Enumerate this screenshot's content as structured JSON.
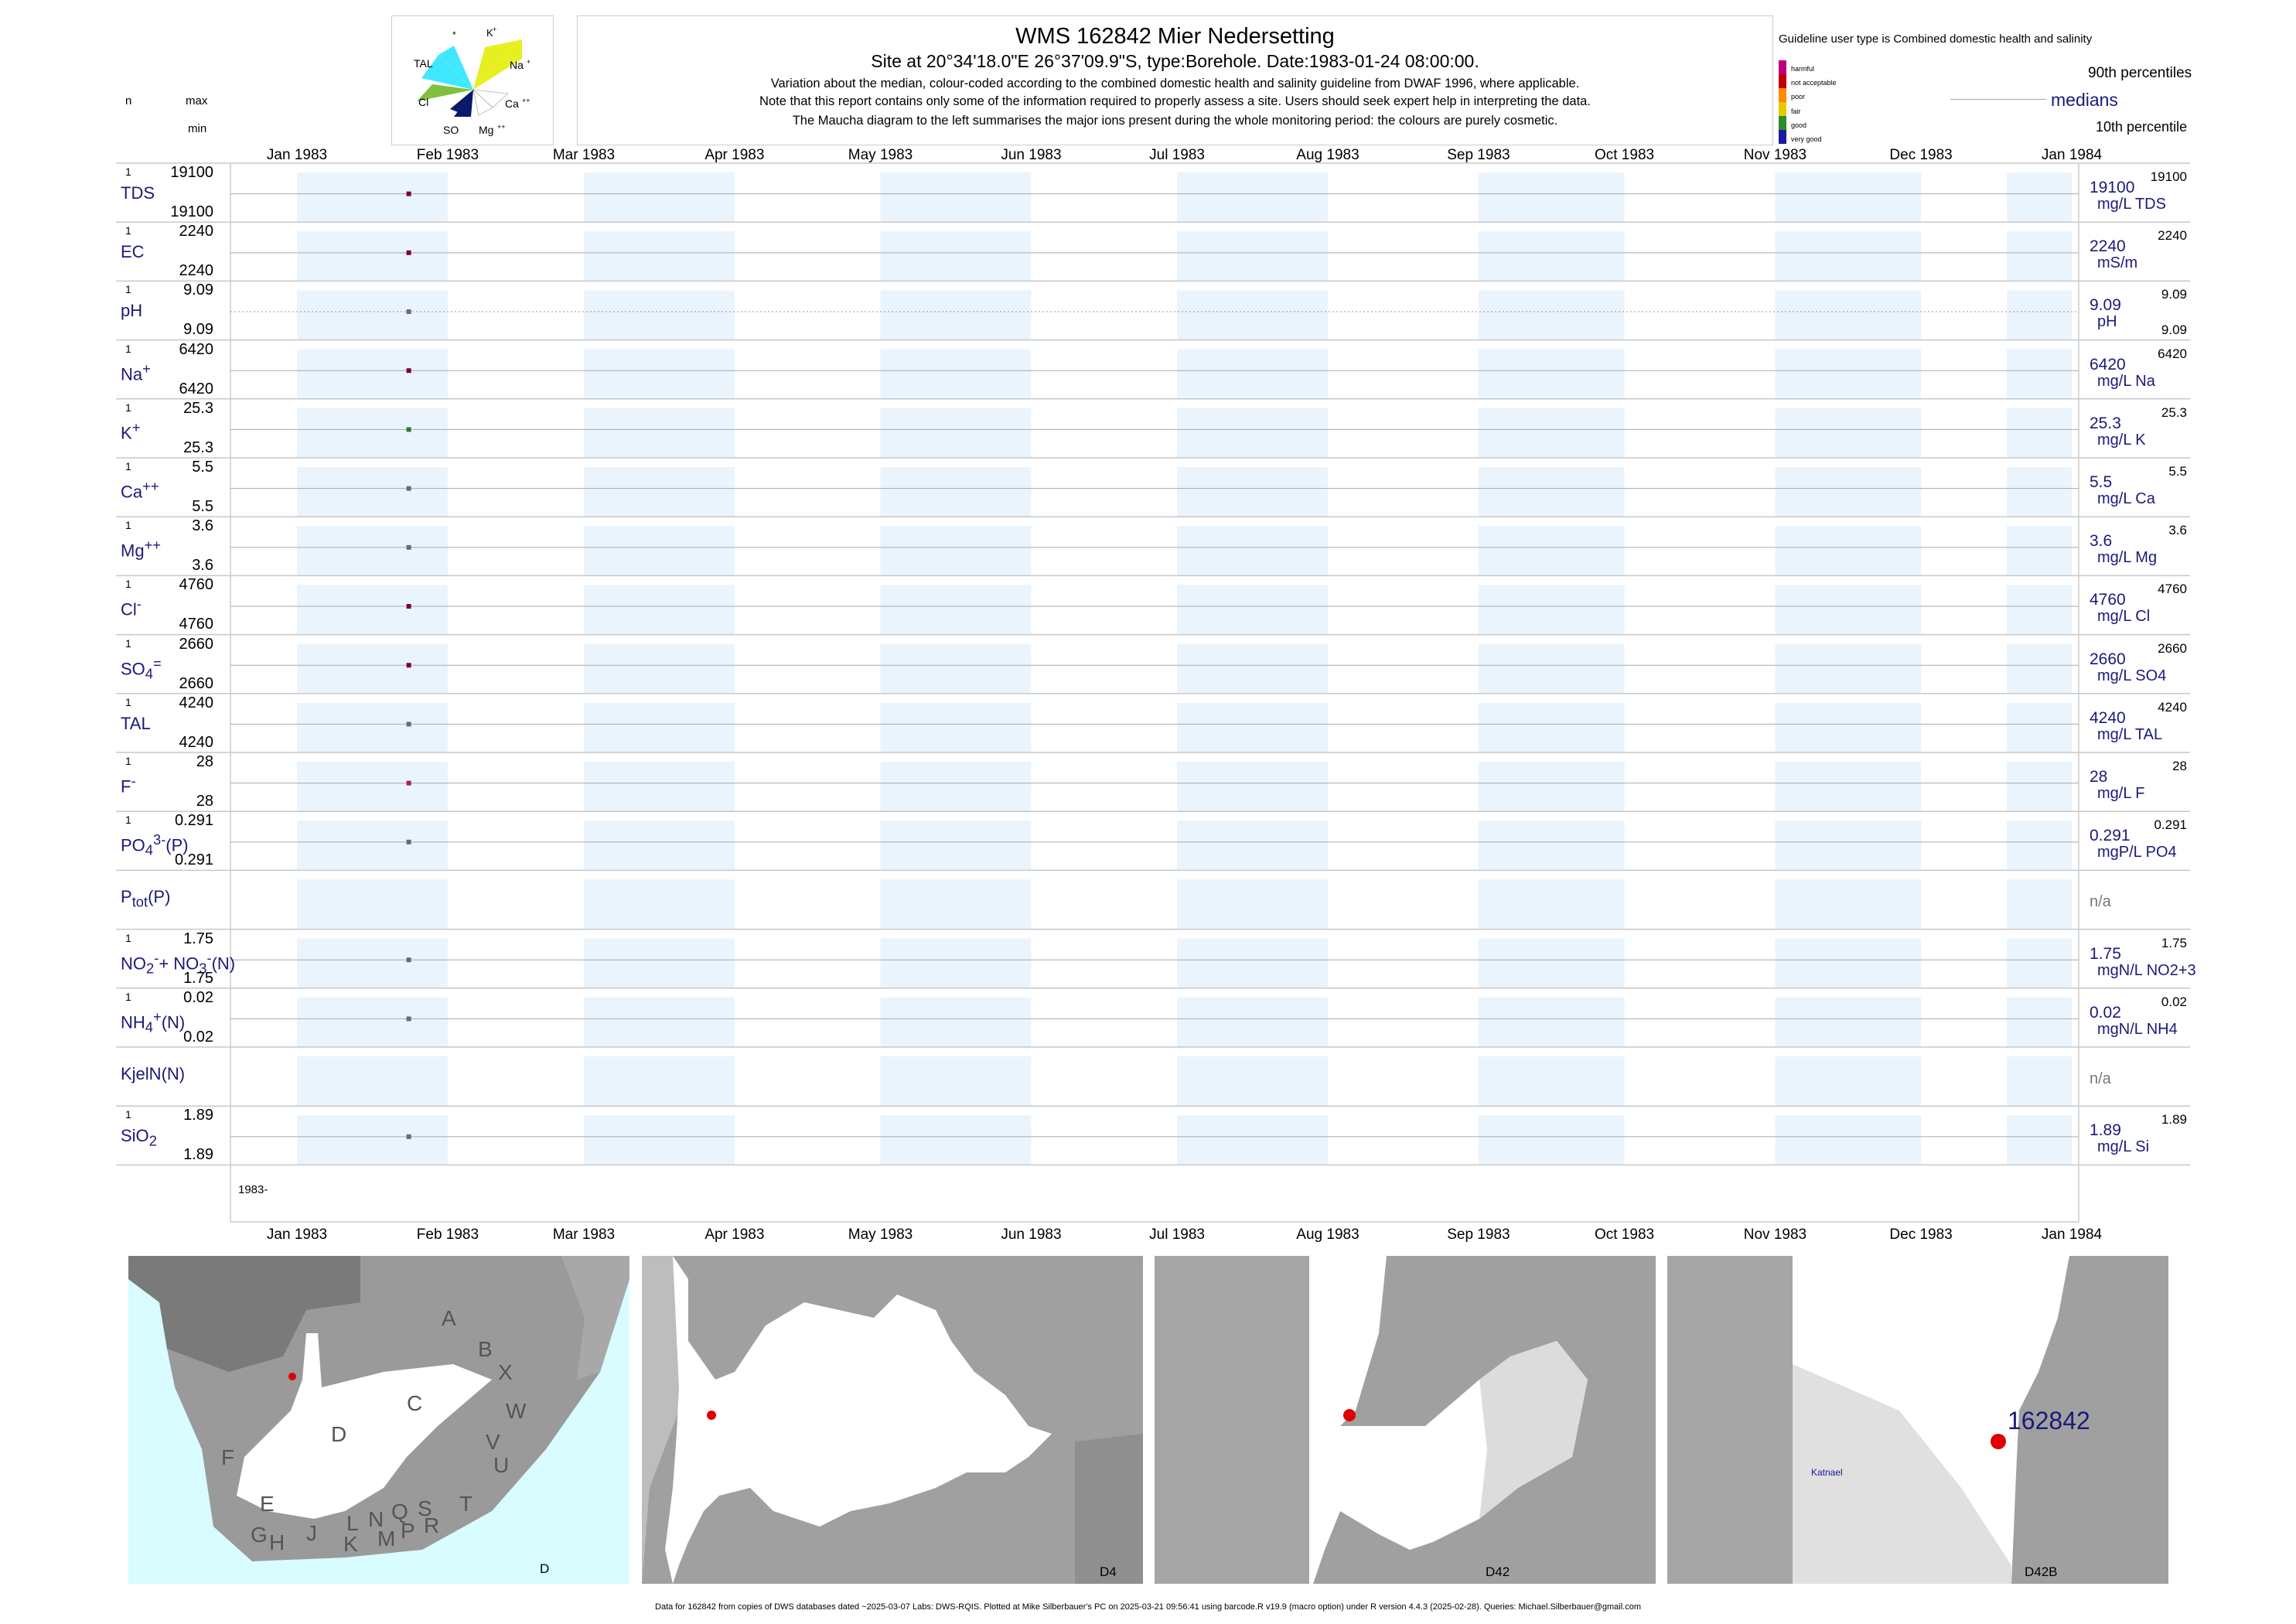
{
  "header": {
    "title": "WMS 162842  Mier Nedersetting",
    "subtitle": "Site at 20°34'18.0\"E 26°37'09.9\"S, type:Borehole. Date:1983-01-24 08:00:00.",
    "note1": "Variation about the median,  colour-coded according to the combined domestic health and salinity guideline from DWAF 1996, where applicable.",
    "note2": "Note that this report contains only some of the information required to properly assess a site. Users should seek expert help in interpreting the data.",
    "note3": "The Maucha diagram to the left summarises the major ions present during the whole monitoring period: the colours are purely cosmetic."
  },
  "left_header": {
    "n": "n",
    "max": "max",
    "min": "min"
  },
  "maucha": {
    "labels": {
      "star": "*",
      "k": "K",
      "tal": "TAL",
      "na": "Na",
      "cl": "Cl",
      "ca": "Ca",
      "so4": "SO",
      "mg": "Mg"
    }
  },
  "legend": {
    "guideline": "Guideline user type is Combined domestic health and salinity",
    "classes": [
      "harmful",
      "not acceptable",
      "poor",
      "fair",
      "good",
      "very good"
    ],
    "class_colors": [
      "#c0007a",
      "#c00000",
      "#ff8c00",
      "#e6c800",
      "#2e8b2e",
      "#1a1aa0"
    ],
    "p90": "90th percentiles",
    "medians": "medians",
    "p10": "10th percentile"
  },
  "chart_data": {
    "type": "scatter",
    "x_axis": {
      "start": "1983-01-01",
      "end": "1984-01-01",
      "ticks": [
        {
          "date": "1983-01-01",
          "label": "Jan 1983"
        },
        {
          "date": "1983-02-01",
          "label": "Feb 1983"
        },
        {
          "date": "1983-03-01",
          "label": "Mar 1983"
        },
        {
          "date": "1983-04-01",
          "label": "Apr 1983"
        },
        {
          "date": "1983-05-01",
          "label": "May 1983"
        },
        {
          "date": "1983-06-01",
          "label": "Jun 1983"
        },
        {
          "date": "1983-07-01",
          "label": "Jul 1983"
        },
        {
          "date": "1983-08-01",
          "label": "Aug 1983"
        },
        {
          "date": "1983-09-01",
          "label": "Sep 1983"
        },
        {
          "date": "1983-10-01",
          "label": "Oct 1983"
        },
        {
          "date": "1983-11-01",
          "label": "Nov 1983"
        },
        {
          "date": "1983-12-01",
          "label": "Dec 1983"
        },
        {
          "date": "1984-01-01",
          "label": "Jan 1984"
        }
      ],
      "year_label": "1983-"
    },
    "sample_date": "1983-01-24",
    "series": [
      {
        "name": "TDS",
        "n": "1",
        "max": "19100",
        "min": "19100",
        "value": 19100,
        "median_text": "19100",
        "unit": "mg/L TDS",
        "p90": "19100",
        "p10": "",
        "color": "#7a0030"
      },
      {
        "name": "EC",
        "n": "1",
        "max": "2240",
        "min": "2240",
        "value": 2240,
        "median_text": "2240",
        "unit": "mS/m",
        "p90": "2240",
        "p10": "",
        "color": "#7a0030"
      },
      {
        "name": "pH",
        "n": "1",
        "max": "9.09",
        "min": "9.09",
        "value": 9.09,
        "median_text": "9.09",
        "unit": "pH",
        "p90": "9.09",
        "p10": "9.09",
        "color": "#6a6a6a"
      },
      {
        "name": "Na",
        "n": "1",
        "max": "6420",
        "min": "6420",
        "value": 6420,
        "median_text": "6420",
        "unit": "mg/L Na",
        "p90": "6420",
        "p10": "",
        "color": "#7a0030"
      },
      {
        "name": "K",
        "n": "1",
        "max": "25.3",
        "min": "25.3",
        "value": 25.3,
        "median_text": "25.3",
        "unit": "mg/L K",
        "p90": "25.3",
        "p10": "",
        "color": "#2e7a2e"
      },
      {
        "name": "Ca",
        "n": "1",
        "max": "5.5",
        "min": "5.5",
        "value": 5.5,
        "median_text": "5.5",
        "unit": "mg/L Ca",
        "p90": "5.5",
        "p10": "",
        "color": "#6a6a6a"
      },
      {
        "name": "Mg",
        "n": "1",
        "max": "3.6",
        "min": "3.6",
        "value": 3.6,
        "median_text": "3.6",
        "unit": "mg/L Mg",
        "p90": "3.6",
        "p10": "",
        "color": "#6a6a6a"
      },
      {
        "name": "Cl",
        "n": "1",
        "max": "4760",
        "min": "4760",
        "value": 4760,
        "median_text": "4760",
        "unit": "mg/L Cl",
        "p90": "4760",
        "p10": "",
        "color": "#7a0030"
      },
      {
        "name": "SO4",
        "n": "1",
        "max": "2660",
        "min": "2660",
        "value": 2660,
        "median_text": "2660",
        "unit": "mg/L SO4",
        "p90": "2660",
        "p10": "",
        "color": "#7a0030"
      },
      {
        "name": "TAL",
        "n": "1",
        "max": "4240",
        "min": "4240",
        "value": 4240,
        "median_text": "4240",
        "unit": "mg/L TAL",
        "p90": "4240",
        "p10": "",
        "color": "#6a6a6a"
      },
      {
        "name": "F",
        "n": "1",
        "max": "28",
        "min": "28",
        "value": 28,
        "median_text": "28",
        "unit": "mg/L F",
        "p90": "28",
        "p10": "",
        "color": "#a0205a"
      },
      {
        "name": "PO4(P)",
        "n": "1",
        "max": "0.291",
        "min": "0.291",
        "value": 0.291,
        "median_text": "0.291",
        "unit": "mgP/L PO4",
        "p90": "0.291",
        "p10": "",
        "color": "#6a6a6a"
      },
      {
        "name": "Ptot(P)",
        "n": "",
        "max": "",
        "min": "",
        "value": null,
        "median_text": "n/a",
        "unit": "",
        "p90": "",
        "p10": "",
        "color": "#6a6a6a"
      },
      {
        "name": "NO2+NO3(N)",
        "n": "1",
        "max": "1.75",
        "min": "1.75",
        "value": 1.75,
        "median_text": "1.75",
        "unit": "mgN/L NO2+3",
        "p90": "1.75",
        "p10": "",
        "color": "#6a6a6a"
      },
      {
        "name": "NH4(N)",
        "n": "1",
        "max": "0.02",
        "min": "0.02",
        "value": 0.02,
        "median_text": "0.02",
        "unit": "mgN/L NH4",
        "p90": "0.02",
        "p10": "",
        "color": "#6a6a6a"
      },
      {
        "name": "KjelN(N)",
        "n": "",
        "max": "",
        "min": "",
        "value": null,
        "median_text": "n/a",
        "unit": "",
        "p90": "",
        "p10": "",
        "color": "#6a6a6a"
      },
      {
        "name": "SiO2",
        "n": "1",
        "max": "1.89",
        "min": "1.89",
        "value": 1.89,
        "median_text": "1.89",
        "unit": "mg/L Si",
        "p90": "1.89",
        "p10": "",
        "color": "#6a6a6a"
      }
    ]
  },
  "maps": {
    "labels": [
      "D",
      "D4",
      "D42",
      "D42B"
    ],
    "regions": [
      "A",
      "B",
      "X",
      "W",
      "C",
      "V",
      "U",
      "T",
      "D",
      "F",
      "E",
      "G",
      "H",
      "J",
      "K",
      "L",
      "M",
      "N",
      "P",
      "Q",
      "R",
      "S"
    ],
    "site_label": "162842",
    "place_label": "Katnael"
  },
  "footer": "Data for 162842 from copies of DWS databases dated ~2025-03-07 Labs: DWS-RQIS. Plotted at Mike Silberbauer's PC on 2025-03-21 09:56:41 using barcode.R v19.9 (macro option) under R version 4.4.3 (2025-02-28). Queries: Michael.Silberbauer@gmail.com"
}
